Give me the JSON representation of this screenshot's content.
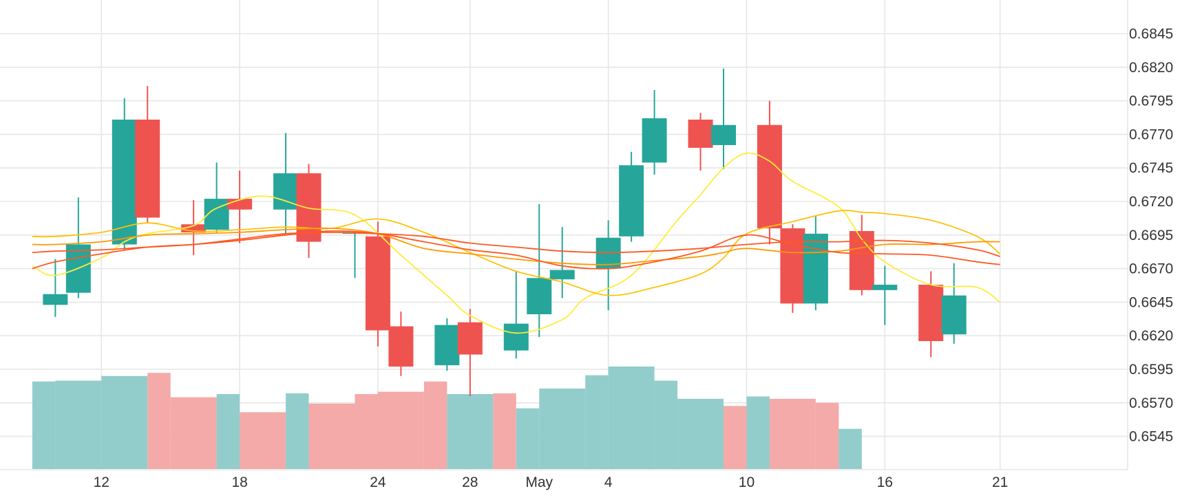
{
  "chart_data": {
    "type": "candlestick",
    "x_tick_labels": [
      "12",
      "18",
      "24",
      "28",
      "May",
      "4",
      "10",
      "16",
      "21"
    ],
    "y_tick_labels": [
      "0.6845",
      "0.6820",
      "0.6795",
      "0.6770",
      "0.6745",
      "0.6720",
      "0.6695",
      "0.6670",
      "0.6645",
      "0.6620",
      "0.6595",
      "0.6570",
      "0.6545"
    ],
    "y_range": [
      0.65205,
      0.68785
    ],
    "grid": true,
    "colors": {
      "up": "#26a69a",
      "down": "#ef5350",
      "volume_up": "#92cdcc",
      "volume_down": "#f4aaa8",
      "ma_yellow": "#ffeb3b",
      "ma_amber": "#ffc107",
      "ma_orange": "#ff9800",
      "ma_deep_orange": "#ff5722",
      "grid": "#e6e6e6",
      "text": "#333333"
    },
    "candles": [
      {
        "date": "Apr 10",
        "open": 0.6643,
        "high": 0.6677,
        "low": 0.6634,
        "close": 0.6651
      },
      {
        "date": "Apr 11",
        "open": 0.6652,
        "high": 0.6723,
        "low": 0.6648,
        "close": 0.6688
      },
      {
        "date": "Apr 13",
        "open": 0.6688,
        "high": 0.6797,
        "low": 0.6684,
        "close": 0.6781
      },
      {
        "date": "Apr 14",
        "open": 0.6781,
        "high": 0.6806,
        "low": 0.6704,
        "close": 0.6708
      },
      {
        "date": "Apr 16",
        "open": 0.6703,
        "high": 0.6721,
        "low": 0.668,
        "close": 0.6697
      },
      {
        "date": "Apr 17",
        "open": 0.6699,
        "high": 0.6749,
        "low": 0.6697,
        "close": 0.6722
      },
      {
        "date": "Apr 18",
        "open": 0.6722,
        "high": 0.6743,
        "low": 0.6689,
        "close": 0.6714
      },
      {
        "date": "Apr 20",
        "open": 0.6714,
        "high": 0.6771,
        "low": 0.6696,
        "close": 0.6741
      },
      {
        "date": "Apr 21",
        "open": 0.6741,
        "high": 0.6748,
        "low": 0.6678,
        "close": 0.669
      },
      {
        "date": "Apr 23",
        "open": 0.6697,
        "high": 0.6697,
        "low": 0.6663,
        "close": 0.6697
      },
      {
        "date": "Apr 24",
        "open": 0.6694,
        "high": 0.6705,
        "low": 0.6612,
        "close": 0.6624
      },
      {
        "date": "Apr 25",
        "open": 0.6627,
        "high": 0.6638,
        "low": 0.659,
        "close": 0.6597
      },
      {
        "date": "Apr 27",
        "open": 0.6598,
        "high": 0.6633,
        "low": 0.6594,
        "close": 0.6628
      },
      {
        "date": "Apr 28",
        "open": 0.663,
        "high": 0.664,
        "low": 0.6575,
        "close": 0.6606
      },
      {
        "date": "Apr 30",
        "open": 0.6609,
        "high": 0.6668,
        "low": 0.6603,
        "close": 0.6629
      },
      {
        "date": "May 1",
        "open": 0.6636,
        "high": 0.6718,
        "low": 0.6619,
        "close": 0.6663
      },
      {
        "date": "May 2",
        "open": 0.6662,
        "high": 0.6701,
        "low": 0.6648,
        "close": 0.6669
      },
      {
        "date": "May 4",
        "open": 0.667,
        "high": 0.6706,
        "low": 0.6639,
        "close": 0.6693
      },
      {
        "date": "May 5",
        "open": 0.6694,
        "high": 0.6757,
        "low": 0.669,
        "close": 0.6747
      },
      {
        "date": "May 6",
        "open": 0.6749,
        "high": 0.6803,
        "low": 0.674,
        "close": 0.6782
      },
      {
        "date": "May 8",
        "open": 0.6781,
        "high": 0.6786,
        "low": 0.6743,
        "close": 0.676
      },
      {
        "date": "May 9",
        "open": 0.6762,
        "high": 0.6819,
        "low": 0.6744,
        "close": 0.6777
      },
      {
        "date": "May 11",
        "open": 0.6777,
        "high": 0.6795,
        "low": 0.6688,
        "close": 0.67
      },
      {
        "date": "May 12",
        "open": 0.67,
        "high": 0.6703,
        "low": 0.6637,
        "close": 0.6644
      },
      {
        "date": "May 13",
        "open": 0.6644,
        "high": 0.6709,
        "low": 0.6639,
        "close": 0.6696
      },
      {
        "date": "May 15",
        "open": 0.6698,
        "high": 0.671,
        "low": 0.665,
        "close": 0.6654
      },
      {
        "date": "May 16",
        "open": 0.6654,
        "high": 0.6672,
        "low": 0.6628,
        "close": 0.6658
      },
      {
        "date": "May 18",
        "open": 0.6658,
        "high": 0.6668,
        "low": 0.6604,
        "close": 0.6616
      },
      {
        "date": "May 19",
        "open": 0.6621,
        "high": 0.6674,
        "low": 0.6614,
        "close": 0.665
      }
    ],
    "volume_bars": [
      {
        "from": "Apr 9",
        "to": "Apr 10",
        "level": 0.854,
        "direction": "up"
      },
      {
        "from": "Apr 10",
        "to": "Apr 12",
        "level": 0.862,
        "direction": "up"
      },
      {
        "from": "Apr 12",
        "to": "Apr 14",
        "level": 0.908,
        "direction": "up"
      },
      {
        "from": "Apr 14",
        "to": "Apr 15",
        "level": 0.938,
        "direction": "down"
      },
      {
        "from": "Apr 15",
        "to": "Apr 17",
        "level": 0.7,
        "direction": "down"
      },
      {
        "from": "Apr 17",
        "to": "Apr 18",
        "level": 0.731,
        "direction": "up"
      },
      {
        "from": "Apr 18",
        "to": "Apr 20",
        "level": 0.554,
        "direction": "down"
      },
      {
        "from": "Apr 20",
        "to": "Apr 21",
        "level": 0.738,
        "direction": "up"
      },
      {
        "from": "Apr 21",
        "to": "Apr 23",
        "level": 0.638,
        "direction": "down"
      },
      {
        "from": "Apr 23",
        "to": "Apr 24",
        "level": 0.731,
        "direction": "down"
      },
      {
        "from": "Apr 24",
        "to": "Apr 26",
        "level": 0.754,
        "direction": "down"
      },
      {
        "from": "Apr 26",
        "to": "Apr 27",
        "level": 0.854,
        "direction": "down"
      },
      {
        "from": "Apr 27",
        "to": "Apr 29",
        "level": 0.731,
        "direction": "up"
      },
      {
        "from": "Apr 29",
        "to": "Apr 30",
        "level": 0.738,
        "direction": "down"
      },
      {
        "from": "Apr 30",
        "to": "May 1",
        "level": 0.592,
        "direction": "up"
      },
      {
        "from": "May 1",
        "to": "May 3",
        "level": 0.785,
        "direction": "up"
      },
      {
        "from": "May 3",
        "to": "May 4",
        "level": 0.915,
        "direction": "up"
      },
      {
        "from": "May 4",
        "to": "May 6",
        "level": 1.0,
        "direction": "up"
      },
      {
        "from": "May 6",
        "to": "May 7",
        "level": 0.862,
        "direction": "up"
      },
      {
        "from": "May 7",
        "to": "May 9",
        "level": 0.685,
        "direction": "up"
      },
      {
        "from": "May 9",
        "to": "May 10",
        "level": 0.615,
        "direction": "down"
      },
      {
        "from": "May 10",
        "to": "May 11",
        "level": 0.708,
        "direction": "up"
      },
      {
        "from": "May 11",
        "to": "May 13",
        "level": 0.685,
        "direction": "down"
      },
      {
        "from": "May 13",
        "to": "May 14",
        "level": 0.646,
        "direction": "down"
      },
      {
        "from": "May 14",
        "to": "May 15",
        "level": 0.392,
        "direction": "up"
      }
    ],
    "moving_averages": [
      {
        "color_key": "ma_yellow",
        "x": [
          "Apr 9",
          "Apr 10",
          "Apr 12",
          "Apr 13",
          "Apr 14",
          "Apr 16",
          "Apr 17",
          "Apr 19",
          "Apr 21",
          "Apr 23",
          "Apr 25",
          "Apr 27",
          "Apr 28",
          "Apr 30",
          "May 2",
          "May 3",
          "May 5",
          "May 7",
          "May 8",
          "May 9",
          "May 10",
          "May 11",
          "May 12",
          "May 14",
          "May 15",
          "May 16",
          "May 18",
          "May 20",
          "May 21"
        ],
        "y": [
          0.6672,
          0.6665,
          0.6678,
          0.669,
          0.6696,
          0.6702,
          0.6715,
          0.6724,
          0.6715,
          0.671,
          0.668,
          0.665,
          0.6635,
          0.6622,
          0.6632,
          0.6648,
          0.6665,
          0.6706,
          0.6725,
          0.6745,
          0.6756,
          0.675,
          0.6735,
          0.6716,
          0.6692,
          0.6675,
          0.6658,
          0.6656,
          0.6645
        ]
      },
      {
        "color_key": "ma_amber",
        "x": [
          "Apr 9",
          "Apr 10",
          "Apr 12",
          "Apr 14",
          "Apr 16",
          "Apr 18",
          "Apr 20",
          "Apr 22",
          "Apr 24",
          "Apr 26",
          "Apr 28",
          "Apr 30",
          "May 2",
          "May 4",
          "May 6",
          "May 8",
          "May 9",
          "May 10",
          "May 12",
          "May 14",
          "May 15",
          "May 16",
          "May 18",
          "May 20",
          "May 21"
        ],
        "y": [
          0.6694,
          0.6694,
          0.6697,
          0.6704,
          0.6698,
          0.6699,
          0.6701,
          0.67,
          0.6707,
          0.6697,
          0.6682,
          0.6668,
          0.666,
          0.665,
          0.6656,
          0.6666,
          0.6678,
          0.6696,
          0.6705,
          0.6713,
          0.6712,
          0.6711,
          0.6706,
          0.6694,
          0.6681
        ]
      },
      {
        "color_key": "ma_orange",
        "x": [
          "Apr 9",
          "Apr 10",
          "Apr 12",
          "Apr 14",
          "Apr 16",
          "Apr 18",
          "Apr 20",
          "Apr 22",
          "Apr 24",
          "Apr 26",
          "Apr 28",
          "Apr 30",
          "May 2",
          "May 4",
          "May 6",
          "May 8",
          "May 9",
          "May 10",
          "May 12",
          "May 14",
          "May 16",
          "May 18",
          "May 20",
          "May 21"
        ],
        "y": [
          0.6688,
          0.6688,
          0.669,
          0.6695,
          0.6696,
          0.6697,
          0.6699,
          0.67,
          0.6696,
          0.6685,
          0.6681,
          0.6677,
          0.6674,
          0.6673,
          0.6676,
          0.6679,
          0.6682,
          0.6685,
          0.6682,
          0.6683,
          0.6688,
          0.6688,
          0.669,
          0.669
        ]
      },
      {
        "color_key": "ma_deep_orange",
        "x": [
          "Apr 9",
          "Apr 10",
          "Apr 12",
          "Apr 14",
          "Apr 16",
          "Apr 18",
          "Apr 20",
          "Apr 22",
          "Apr 24",
          "Apr 26",
          "Apr 28",
          "Apr 30",
          "May 2",
          "May 4",
          "May 6",
          "May 8",
          "May 10",
          "May 12",
          "May 14",
          "May 16",
          "May 18",
          "May 20",
          "May 21"
        ],
        "y": [
          0.667,
          0.6675,
          0.6681,
          0.6686,
          0.6688,
          0.6691,
          0.6695,
          0.6698,
          0.6696,
          0.669,
          0.6684,
          0.668,
          0.6672,
          0.667,
          0.6675,
          0.6683,
          0.6695,
          0.6688,
          0.6682,
          0.6681,
          0.668,
          0.6675,
          0.6673
        ]
      },
      {
        "color_key": "ma_deep_orange",
        "x": [
          "Apr 9",
          "Apr 10",
          "Apr 12",
          "Apr 14",
          "Apr 16",
          "Apr 18",
          "Apr 20",
          "Apr 22",
          "Apr 24",
          "Apr 26",
          "Apr 28",
          "Apr 30",
          "May 2",
          "May 4",
          "May 6",
          "May 8",
          "May 10",
          "May 12",
          "May 14",
          "May 16",
          "May 18",
          "May 20",
          "May 21"
        ],
        "y": [
          0.6682,
          0.6683,
          0.6684,
          0.6686,
          0.6688,
          0.6692,
          0.6696,
          0.6697,
          0.6696,
          0.6694,
          0.6689,
          0.6686,
          0.6683,
          0.6682,
          0.6683,
          0.6685,
          0.6688,
          0.669,
          0.669,
          0.6691,
          0.6689,
          0.6684,
          0.6679
        ]
      }
    ]
  }
}
